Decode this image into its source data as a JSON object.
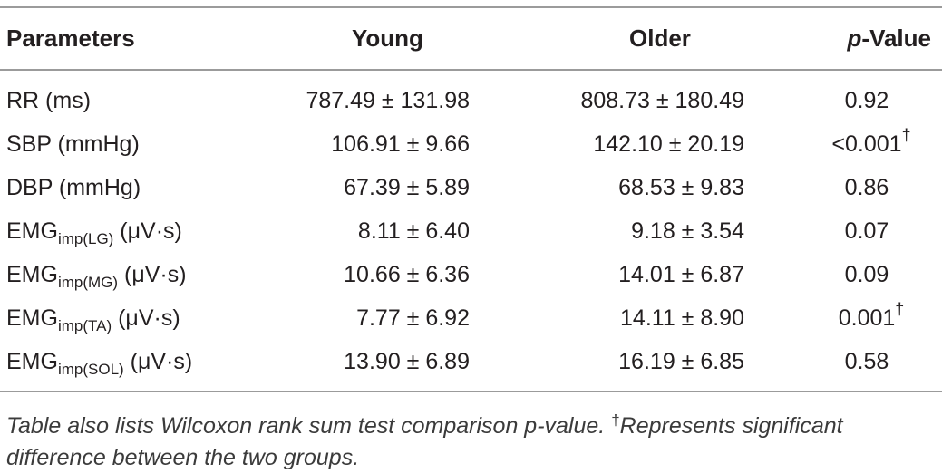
{
  "table": {
    "headers": {
      "parameters": "Parameters",
      "young": "Young",
      "older": "Older",
      "pvalue_prefix": "p",
      "pvalue_suffix": "-Value"
    },
    "rows": [
      {
        "param": "RR (ms)",
        "param_main": "",
        "param_sub": "",
        "param_unit": "",
        "young": "787.49 ± 131.98",
        "older": "808.73 ± 180.49",
        "pvalue": "0.92",
        "significant": ""
      },
      {
        "param": "SBP (mmHg)",
        "param_main": "",
        "param_sub": "",
        "param_unit": "",
        "young": "106.91 ± 9.66",
        "older": "142.10 ± 20.19",
        "pvalue": "<0.001",
        "significant": "†"
      },
      {
        "param": "DBP (mmHg)",
        "param_main": "",
        "param_sub": "",
        "param_unit": "",
        "young": "67.39 ± 5.89",
        "older": "68.53 ± 9.83",
        "pvalue": "0.86",
        "significant": ""
      },
      {
        "param": "",
        "param_main": "EMG",
        "param_sub": "imp(LG)",
        "param_unit": " (μV·s)",
        "young": "8.11 ± 6.40",
        "older": "9.18 ± 3.54",
        "pvalue": "0.07",
        "significant": ""
      },
      {
        "param": "",
        "param_main": "EMG",
        "param_sub": "imp(MG)",
        "param_unit": " (μV·s)",
        "young": "10.66 ± 6.36",
        "older": "14.01 ± 6.87",
        "pvalue": "0.09",
        "significant": ""
      },
      {
        "param": "",
        "param_main": "EMG",
        "param_sub": "imp(TA)",
        "param_unit": " (μV·s)",
        "young": "7.77 ± 6.92",
        "older": "14.11 ± 8.90",
        "pvalue": "0.001",
        "significant": "†"
      },
      {
        "param": "",
        "param_main": "EMG",
        "param_sub": "imp(SOL)",
        "param_unit": " (μV·s)",
        "young": "13.90 ± 6.89",
        "older": "16.19 ± 6.85",
        "pvalue": "0.58",
        "significant": ""
      }
    ]
  },
  "caption": {
    "part1": "Table also lists Wilcoxon rank sum test comparison p-value. ",
    "dagger": "†",
    "part2": "Represents significant difference between the two groups."
  }
}
